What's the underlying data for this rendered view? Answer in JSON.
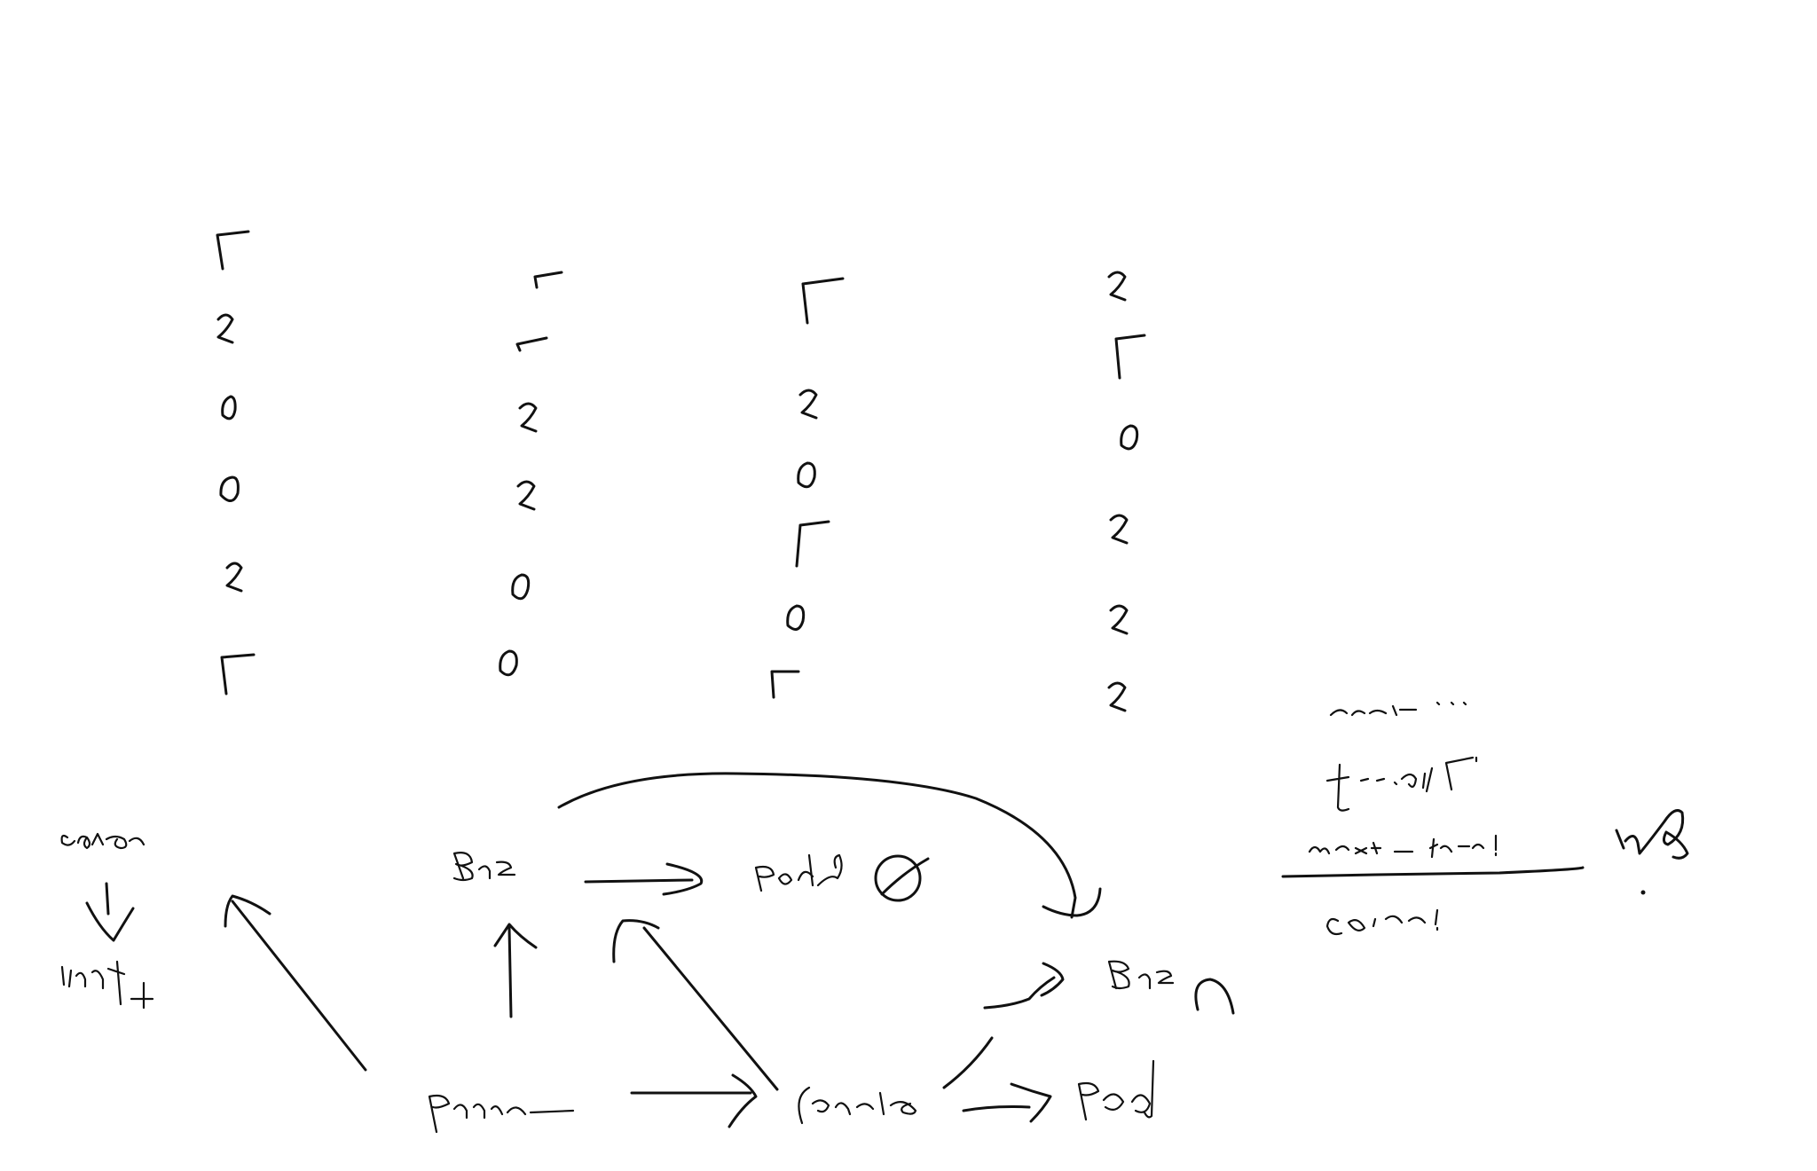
{
  "canvas": {
    "background": "#ffffff",
    "ink_color": "#111111"
  },
  "digit_columns": [
    {
      "digits": [
        "7",
        "2",
        "0",
        "0",
        "2",
        "7"
      ]
    },
    {
      "digits": [
        "7",
        "7",
        "2",
        "2",
        "0",
        "0"
      ]
    },
    {
      "digits": [
        "7",
        "2",
        "0",
        "7",
        "0",
        "7"
      ]
    },
    {
      "digits": [
        "2",
        "7",
        "0",
        "2",
        "2",
        "2"
      ]
    }
  ],
  "left_chain": {
    "top_word_image": "handwritten-scribble",
    "bottom_word_image": "handwritten-scribble"
  },
  "flow_nodes": [
    {
      "id": "top-left-node",
      "image": "handwritten-scribble"
    },
    {
      "id": "top-middle-node",
      "image": "handwritten-scribble"
    },
    {
      "id": "right-node",
      "image": "handwritten-scribble"
    },
    {
      "id": "bottom-left-node",
      "image": "handwritten-scribble"
    },
    {
      "id": "bottom-middle-node",
      "image": "handwritten-scribble"
    },
    {
      "id": "bottom-right-node",
      "image": "handwritten-scribble"
    }
  ],
  "side_notes": {
    "lines": [
      {
        "image": "handwritten-scribble"
      },
      {
        "image": "handwritten-scribble"
      },
      {
        "image": "handwritten-scribble"
      },
      {
        "image": "handwritten-scribble"
      }
    ],
    "margin_mark": "handwritten-scribble"
  }
}
